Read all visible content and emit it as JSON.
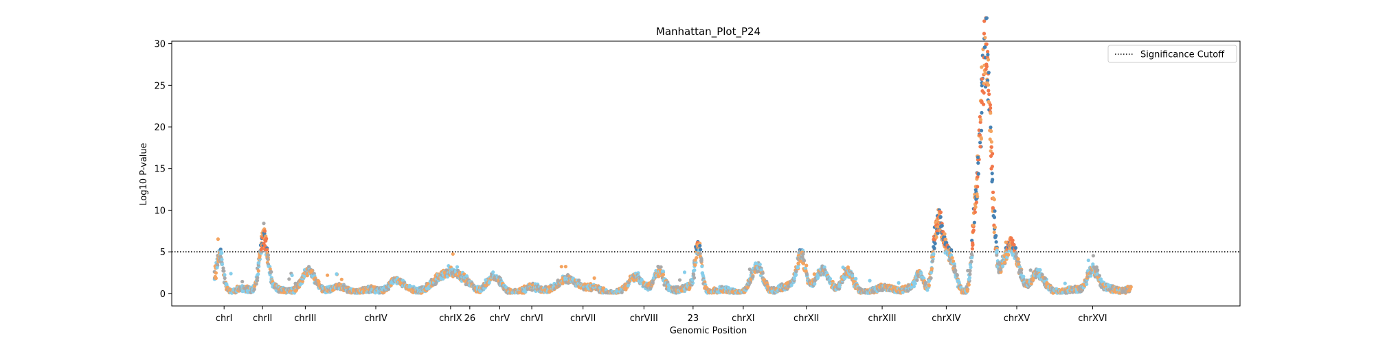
{
  "chart_data": {
    "type": "scatter",
    "title": "Manhattan_Plot_P24",
    "xlabel": "Genomic Position",
    "ylabel": "Log10 P-value",
    "ylim": [
      -1.5,
      30.3
    ],
    "yticks": [
      0,
      5,
      10,
      15,
      20,
      25,
      30
    ],
    "xlim": [
      0,
      1000
    ],
    "grid": false,
    "legend": {
      "placement": "top-right",
      "entries": [
        {
          "label": "Significance Cutoff",
          "style": "dotted",
          "color": "#000000"
        }
      ]
    },
    "significance_cutoff": 5,
    "colors": {
      "light_blue": "#87ceeb",
      "orange": "#f4a460",
      "grey": "#a9a9a9",
      "dark_blue": "#4682b4",
      "dark_orange": "#f2784b"
    },
    "chromosomes": [
      {
        "label": "chrI",
        "center": 49,
        "start": 40,
        "end": 60
      },
      {
        "label": "chrII",
        "center": 85,
        "start": 60,
        "end": 114
      },
      {
        "label": "chrIII",
        "center": 125,
        "start": 114,
        "end": 150
      },
      {
        "label": "chrIV",
        "center": 191,
        "start": 150,
        "end": 255
      },
      {
        "label": "chrIX",
        "center": 261,
        "start": 255,
        "end": 280
      },
      {
        "label": "26",
        "center": 279,
        "start": 280,
        "end": 296
      },
      {
        "label": "chrV",
        "center": 307,
        "start": 296,
        "end": 320
      },
      {
        "label": "chrVI",
        "center": 337,
        "start": 320,
        "end": 355
      },
      {
        "label": "chrVII",
        "center": 385,
        "start": 355,
        "end": 425
      },
      {
        "label": "chrVIII",
        "center": 442,
        "start": 425,
        "end": 465
      },
      {
        "label": "23",
        "center": 488,
        "start": 465,
        "end": 520
      },
      {
        "label": "chrXI",
        "center": 535,
        "start": 520,
        "end": 565
      },
      {
        "label": "chrXII",
        "center": 594,
        "start": 565,
        "end": 630
      },
      {
        "label": "chrXIII",
        "center": 665,
        "start": 630,
        "end": 700
      },
      {
        "label": "chrXIV",
        "center": 725,
        "start": 700,
        "end": 750
      },
      {
        "label": "chrXV",
        "center": 791,
        "start": 750,
        "end": 830
      },
      {
        "label": "chrXVI",
        "center": 862,
        "start": 830,
        "end": 900
      }
    ],
    "peaks": [
      {
        "x": 45,
        "height": 4.3,
        "width": 3
      },
      {
        "x": 86,
        "height": 6.6,
        "width": 4
      },
      {
        "x": 128,
        "height": 1.8,
        "width": 6
      },
      {
        "x": 208,
        "height": 1.3,
        "width": 6
      },
      {
        "x": 262,
        "height": 2.3,
        "width": 10
      },
      {
        "x": 300,
        "height": 1.7,
        "width": 6
      },
      {
        "x": 375,
        "height": 1.0,
        "width": 10
      },
      {
        "x": 435,
        "height": 1.7,
        "width": 6
      },
      {
        "x": 456,
        "height": 1.9,
        "width": 4
      },
      {
        "x": 493,
        "height": 5.2,
        "width": 3
      },
      {
        "x": 548,
        "height": 2.7,
        "width": 5
      },
      {
        "x": 589,
        "height": 4.3,
        "width": 4
      },
      {
        "x": 610,
        "height": 2.2,
        "width": 6
      },
      {
        "x": 632,
        "height": 2.2,
        "width": 5
      },
      {
        "x": 700,
        "height": 1.8,
        "width": 3
      },
      {
        "x": 717,
        "height": 7.5,
        "width": 4
      },
      {
        "x": 727,
        "height": 4.0,
        "width": 6
      },
      {
        "x": 752,
        "height": 6.5,
        "width": 3
      },
      {
        "x": 762,
        "height": 28.5,
        "width": 5
      },
      {
        "x": 785,
        "height": 5.0,
        "width": 7
      },
      {
        "x": 810,
        "height": 1.8,
        "width": 5
      },
      {
        "x": 862,
        "height": 3.0,
        "width": 5
      }
    ],
    "data_range": [
      40,
      898
    ]
  }
}
